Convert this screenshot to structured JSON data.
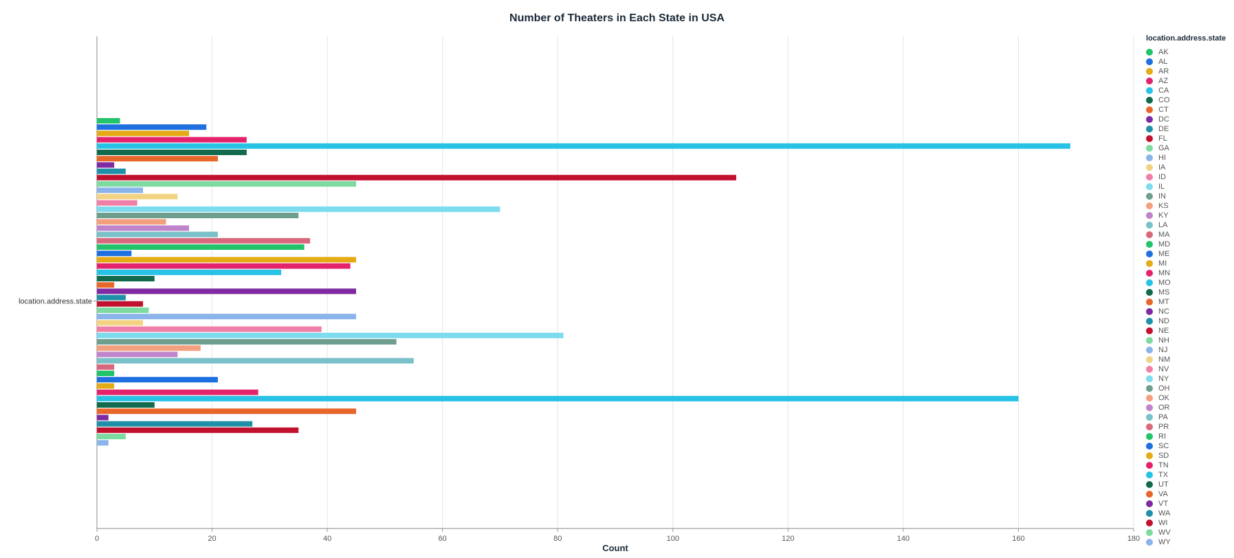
{
  "chart_data": {
    "type": "bar",
    "orientation": "horizontal",
    "title": "Number of Theaters  in Each State in USA",
    "xlabel": "Count",
    "ylabel": "location.address.state",
    "xlim": [
      0,
      180
    ],
    "x_ticks": [
      "0",
      "20",
      "40",
      "60",
      "80",
      "100",
      "120",
      "140",
      "160",
      "180"
    ],
    "grid": true,
    "legend_title": "location.address.state",
    "legend_position": "right",
    "categories": [
      "AK",
      "AL",
      "AR",
      "AZ",
      "CA",
      "CO",
      "CT",
      "DC",
      "DE",
      "FL",
      "GA",
      "HI",
      "IA",
      "ID",
      "IL",
      "IN",
      "KS",
      "KY",
      "LA",
      "MA",
      "MD",
      "ME",
      "MI",
      "MN",
      "MO",
      "MS",
      "MT",
      "NC",
      "ND",
      "NE",
      "NH",
      "NJ",
      "NM",
      "NV",
      "NY",
      "OH",
      "OK",
      "OR",
      "PA",
      "PR",
      "RI",
      "SC",
      "SD",
      "TN",
      "TX",
      "UT",
      "VA",
      "VT",
      "WA",
      "WI",
      "WV",
      "WY"
    ],
    "values": [
      4,
      19,
      16,
      26,
      169,
      26,
      21,
      3,
      5,
      111,
      45,
      8,
      14,
      7,
      70,
      35,
      12,
      16,
      21,
      37,
      36,
      6,
      45,
      44,
      32,
      10,
      3,
      45,
      5,
      8,
      9,
      45,
      8,
      39,
      81,
      52,
      18,
      14,
      55,
      3,
      3,
      21,
      3,
      28,
      160,
      10,
      45,
      2,
      27,
      35,
      5,
      2
    ],
    "colors": [
      "#22c36a",
      "#1e6fe0",
      "#e5ab17",
      "#e4236d",
      "#27c2e6",
      "#116a4e",
      "#e8662a",
      "#7f2aa3",
      "#2090a8",
      "#c2102f",
      "#7ddba1",
      "#8ab4ea",
      "#f2d384",
      "#f07fa7",
      "#7cdcee",
      "#6f9e8e",
      "#f2a07e",
      "#bf84cc",
      "#79c0c8",
      "#d9677e",
      "#22c36a",
      "#1e6fe0",
      "#e5ab17",
      "#e4236d",
      "#27c2e6",
      "#116a4e",
      "#e8662a",
      "#7f2aa3",
      "#2090a8",
      "#c2102f",
      "#7ddba1",
      "#8ab4ea",
      "#f2d384",
      "#f07fa7",
      "#7cdcee",
      "#6f9e8e",
      "#f2a07e",
      "#bf84cc",
      "#79c0c8",
      "#d9677e",
      "#22c36a",
      "#1e6fe0",
      "#e5ab17",
      "#e4236d",
      "#27c2e6",
      "#116a4e",
      "#e8662a",
      "#7f2aa3",
      "#2090a8",
      "#c2102f",
      "#7ddba1",
      "#8ab4ea"
    ]
  }
}
